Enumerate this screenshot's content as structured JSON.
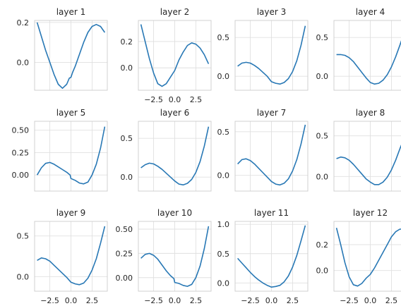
{
  "chart_data": [
    {
      "type": "line",
      "title": "layer 1",
      "xlim": [
        -4.3,
        4.3
      ],
      "ylim": [
        -0.14,
        0.21
      ],
      "xticks": [
        -2.5,
        0,
        2.5
      ],
      "xticklabels": [
        "",
        "",
        ""
      ],
      "yticks": [
        0,
        0.2
      ],
      "yticklabels": [
        "0.0",
        "0.2"
      ],
      "grid": true,
      "color": "#2878b5",
      "series": [
        {
          "x": [
            -4,
            -3.5,
            -3,
            -2.5,
            -2,
            -1.5,
            -1,
            -0.5,
            -0.2,
            0,
            0.2,
            0.5,
            1,
            1.5,
            2,
            2.5,
            3,
            3.5,
            4
          ],
          "y": [
            0.2,
            0.13,
            0.06,
            0.0,
            -0.06,
            -0.11,
            -0.13,
            -0.11,
            -0.08,
            -0.075,
            -0.05,
            -0.02,
            0.04,
            0.1,
            0.15,
            0.18,
            0.19,
            0.18,
            0.15
          ]
        }
      ]
    },
    {
      "type": "line",
      "title": "layer 2",
      "xlim": [
        -4.3,
        4.3
      ],
      "ylim": [
        -0.17,
        0.36
      ],
      "xticks": [
        -2.5,
        0,
        2.5
      ],
      "xticklabels": [
        "−2.5",
        "0.0",
        "2.5"
      ],
      "yticks": [
        0,
        0.2
      ],
      "yticklabels": [
        "0.0",
        "0.2"
      ],
      "grid": true,
      "color": "#2878b5",
      "series": [
        {
          "x": [
            -4,
            -3.5,
            -3,
            -2.5,
            -2,
            -1.5,
            -1,
            -0.5,
            0,
            0.5,
            1,
            1.5,
            2,
            2.5,
            3,
            3.5,
            4
          ],
          "y": [
            0.33,
            0.2,
            0.07,
            -0.04,
            -0.12,
            -0.14,
            -0.12,
            -0.07,
            -0.02,
            0.06,
            0.12,
            0.17,
            0.19,
            0.18,
            0.15,
            0.1,
            0.03
          ]
        }
      ]
    },
    {
      "type": "line",
      "title": "layer 3",
      "xlim": [
        -4.3,
        4.3
      ],
      "ylim": [
        -0.18,
        0.72
      ],
      "xticks": [
        -2.5,
        0,
        2.5
      ],
      "xticklabels": [
        "",
        "",
        ""
      ],
      "yticks": [
        0,
        0.5
      ],
      "yticklabels": [
        "0.0",
        "0.5"
      ],
      "grid": true,
      "color": "#2878b5",
      "series": [
        {
          "x": [
            -4,
            -3.5,
            -3,
            -2.5,
            -2,
            -1.5,
            -1,
            -0.5,
            0,
            0.5,
            1,
            1.5,
            2,
            2.5,
            3,
            3.5,
            4
          ],
          "y": [
            0.13,
            0.17,
            0.18,
            0.17,
            0.14,
            0.1,
            0.05,
            0.0,
            -0.07,
            -0.09,
            -0.1,
            -0.08,
            -0.03,
            0.06,
            0.2,
            0.4,
            0.65
          ]
        }
      ]
    },
    {
      "type": "line",
      "title": "layer 4",
      "xlim": [
        -4.3,
        4.3
      ],
      "ylim": [
        -0.18,
        0.72
      ],
      "xticks": [
        -2.5,
        0,
        2.5
      ],
      "xticklabels": [
        "",
        "",
        ""
      ],
      "yticks": [
        0,
        0.5
      ],
      "yticklabels": [
        "0.0",
        "0.5"
      ],
      "grid": true,
      "color": "#2878b5",
      "series": [
        {
          "x": [
            -4,
            -3.5,
            -3,
            -2.5,
            -2,
            -1.5,
            -1,
            -0.5,
            0,
            0.5,
            1,
            1.5,
            2,
            2.5,
            3,
            3.5,
            4,
            4.3
          ],
          "y": [
            0.28,
            0.28,
            0.27,
            0.24,
            0.19,
            0.12,
            0.05,
            -0.02,
            -0.08,
            -0.1,
            -0.09,
            -0.05,
            0.02,
            0.12,
            0.25,
            0.4,
            0.56,
            0.63
          ]
        }
      ]
    },
    {
      "type": "line",
      "title": "layer 5",
      "xlim": [
        -4.3,
        4.3
      ],
      "ylim": [
        -0.18,
        0.6
      ],
      "xticks": [
        -2.5,
        0,
        2.5
      ],
      "xticklabels": [
        "",
        "",
        ""
      ],
      "yticks": [
        0,
        0.25,
        0.5
      ],
      "yticklabels": [
        "0.00",
        "0.25",
        "0.50"
      ],
      "grid": true,
      "color": "#2878b5",
      "series": [
        {
          "x": [
            -4,
            -3.5,
            -3,
            -2.5,
            -2,
            -1.5,
            -1,
            -0.5,
            -0.1,
            0,
            0.5,
            1,
            1.5,
            2,
            2.5,
            3,
            3.5,
            4
          ],
          "y": [
            0.0,
            0.08,
            0.13,
            0.14,
            0.12,
            0.09,
            0.06,
            0.03,
            0.0,
            -0.04,
            -0.06,
            -0.09,
            -0.1,
            -0.08,
            0.0,
            0.12,
            0.3,
            0.54
          ]
        }
      ]
    },
    {
      "type": "line",
      "title": "layer 6",
      "xlim": [
        -4.3,
        4.3
      ],
      "ylim": [
        -0.18,
        0.72
      ],
      "xticks": [
        -2.5,
        0,
        2.5
      ],
      "xticklabels": [
        "",
        "",
        ""
      ],
      "yticks": [
        0,
        0.5
      ],
      "yticklabels": [
        "0.0",
        "0.5"
      ],
      "grid": true,
      "color": "#2878b5",
      "series": [
        {
          "x": [
            -4,
            -3.5,
            -3,
            -2.5,
            -2,
            -1.5,
            -1,
            -0.5,
            0,
            0.5,
            1,
            1.5,
            2,
            2.5,
            3,
            3.5,
            4
          ],
          "y": [
            0.12,
            0.16,
            0.18,
            0.17,
            0.14,
            0.1,
            0.05,
            0.0,
            -0.05,
            -0.09,
            -0.1,
            -0.08,
            -0.03,
            0.06,
            0.2,
            0.4,
            0.65
          ]
        }
      ]
    },
    {
      "type": "line",
      "title": "layer 7",
      "xlim": [
        -4.3,
        4.3
      ],
      "ylim": [
        -0.18,
        0.62
      ],
      "xticks": [
        -2.5,
        0,
        2.5
      ],
      "xticklabels": [
        "",
        "",
        ""
      ],
      "yticks": [
        0,
        0.5
      ],
      "yticklabels": [
        "0.0",
        "0.5"
      ],
      "grid": true,
      "color": "#2878b5",
      "series": [
        {
          "x": [
            -4,
            -3.5,
            -3,
            -2.5,
            -2,
            -1.5,
            -1,
            -0.5,
            0,
            0.5,
            1,
            1.5,
            2,
            2.5,
            3,
            3.5,
            4
          ],
          "y": [
            0.13,
            0.18,
            0.19,
            0.17,
            0.13,
            0.08,
            0.03,
            -0.02,
            -0.07,
            -0.1,
            -0.11,
            -0.09,
            -0.04,
            0.05,
            0.18,
            0.36,
            0.58
          ]
        }
      ]
    },
    {
      "type": "line",
      "title": "layer 8",
      "xlim": [
        -4.3,
        4.3
      ],
      "ylim": [
        -0.18,
        0.68
      ],
      "xticks": [
        -2.5,
        0,
        2.5
      ],
      "xticklabels": [
        "",
        "",
        ""
      ],
      "yticks": [
        0,
        0.5
      ],
      "yticklabels": [
        "0.0",
        "0.5"
      ],
      "grid": true,
      "color": "#2878b5",
      "series": [
        {
          "x": [
            -4,
            -3.5,
            -3,
            -2.5,
            -2,
            -1.5,
            -1,
            -0.5,
            0,
            0.5,
            1,
            1.5,
            2,
            2.5,
            3,
            3.5,
            4,
            4.3
          ],
          "y": [
            0.22,
            0.24,
            0.23,
            0.2,
            0.15,
            0.09,
            0.03,
            -0.03,
            -0.07,
            -0.1,
            -0.1,
            -0.07,
            -0.01,
            0.08,
            0.2,
            0.34,
            0.47,
            0.52
          ]
        }
      ]
    },
    {
      "type": "line",
      "title": "layer 9",
      "xlim": [
        -4.3,
        4.3
      ],
      "ylim": [
        -0.18,
        0.68
      ],
      "xticks": [
        -2.5,
        0,
        2.5
      ],
      "xticklabels": [
        "−2.5",
        "0.0",
        "2.5"
      ],
      "yticks": [
        0,
        0.5
      ],
      "yticklabels": [
        "0.0",
        "0.5"
      ],
      "grid": true,
      "color": "#2878b5",
      "series": [
        {
          "x": [
            -4,
            -3.5,
            -3,
            -2.5,
            -2,
            -1.5,
            -1,
            -0.5,
            0,
            0.5,
            1,
            1.5,
            2,
            2.5,
            3,
            3.5,
            4
          ],
          "y": [
            0.2,
            0.23,
            0.22,
            0.19,
            0.14,
            0.09,
            0.04,
            -0.01,
            -0.07,
            -0.09,
            -0.1,
            -0.08,
            -0.02,
            0.08,
            0.22,
            0.41,
            0.62
          ]
        }
      ]
    },
    {
      "type": "line",
      "title": "layer 10",
      "xlim": [
        -4.3,
        4.3
      ],
      "ylim": [
        -0.14,
        0.58
      ],
      "xticks": [
        -2.5,
        0,
        2.5
      ],
      "xticklabels": [
        "−2.5",
        "0.0",
        "2.5"
      ],
      "yticks": [
        0,
        0.25,
        0.5
      ],
      "yticklabels": [
        "0.00",
        "0.25",
        "0.50"
      ],
      "grid": true,
      "color": "#2878b5",
      "series": [
        {
          "x": [
            -4,
            -3.5,
            -3,
            -2.5,
            -2,
            -1.5,
            -1,
            -0.5,
            -0.1,
            0,
            0.5,
            1,
            1.5,
            2,
            2.5,
            3,
            3.5,
            4
          ],
          "y": [
            0.2,
            0.24,
            0.25,
            0.23,
            0.19,
            0.13,
            0.07,
            0.02,
            -0.01,
            -0.05,
            -0.06,
            -0.08,
            -0.09,
            -0.07,
            0.0,
            0.12,
            0.3,
            0.53
          ]
        }
      ]
    },
    {
      "type": "line",
      "title": "layer 11",
      "xlim": [
        -4.3,
        4.3
      ],
      "ylim": [
        -0.14,
        1.05
      ],
      "xticks": [
        -2.5,
        0,
        2.5
      ],
      "xticklabels": [
        "−2.5",
        "0.0",
        "2.5"
      ],
      "yticks": [
        0,
        0.5,
        1
      ],
      "yticklabels": [
        "0.0",
        "0.5",
        "1.0"
      ],
      "grid": true,
      "color": "#2878b5",
      "series": [
        {
          "x": [
            -4,
            -3.5,
            -3,
            -2.5,
            -2,
            -1.5,
            -1,
            -0.5,
            0,
            0.5,
            1,
            1.5,
            2,
            2.5,
            3,
            3.5,
            4
          ],
          "y": [
            0.42,
            0.34,
            0.26,
            0.18,
            0.11,
            0.05,
            0.0,
            -0.04,
            -0.07,
            -0.06,
            -0.04,
            0.02,
            0.12,
            0.27,
            0.47,
            0.72,
            0.98
          ]
        }
      ]
    },
    {
      "type": "line",
      "title": "layer 12",
      "xlim": [
        -4.3,
        4.3
      ],
      "ylim": [
        -0.16,
        0.38
      ],
      "xticks": [
        -2.5,
        0,
        2.5
      ],
      "xticklabels": [
        "−2.5",
        "0.0",
        "2.5"
      ],
      "yticks": [
        0,
        0.2
      ],
      "yticklabels": [
        "0.0",
        "0.2"
      ],
      "grid": true,
      "color": "#2878b5",
      "series": [
        {
          "x": [
            -4,
            -3.5,
            -3,
            -2.5,
            -2,
            -1.5,
            -1,
            -0.5,
            0,
            0.5,
            1,
            1.5,
            2,
            2.5,
            3,
            3.5,
            4,
            4.3
          ],
          "y": [
            0.33,
            0.2,
            0.06,
            -0.05,
            -0.11,
            -0.12,
            -0.1,
            -0.06,
            -0.03,
            0.02,
            0.08,
            0.14,
            0.2,
            0.26,
            0.3,
            0.32,
            0.32,
            0.3
          ]
        }
      ]
    }
  ]
}
